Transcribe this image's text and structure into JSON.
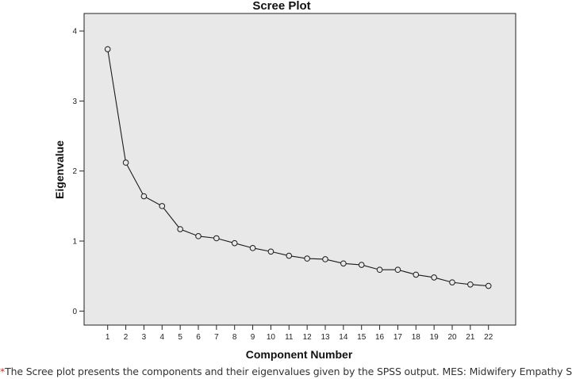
{
  "chart_data": {
    "type": "line",
    "title": "Scree Plot",
    "xlabel": "Component Number",
    "ylabel": "Eigenvalue",
    "x": [
      1,
      2,
      3,
      4,
      5,
      6,
      7,
      8,
      9,
      10,
      11,
      12,
      13,
      14,
      15,
      16,
      17,
      18,
      19,
      20,
      21,
      22
    ],
    "values": [
      3.74,
      2.12,
      1.64,
      1.5,
      1.17,
      1.07,
      1.04,
      0.97,
      0.9,
      0.85,
      0.79,
      0.75,
      0.74,
      0.68,
      0.66,
      0.59,
      0.59,
      0.52,
      0.48,
      0.41,
      0.38,
      0.36
    ],
    "ylim": [
      -0.2,
      4.25
    ],
    "yticks": [
      0,
      1,
      2,
      3,
      4
    ],
    "xlim": [
      -0.3,
      23.5
    ],
    "grid": false,
    "colors": {
      "plot_bg": "#e8e8e8",
      "line": "#1a1a1a"
    }
  },
  "caption": {
    "marker": "*",
    "text": "The Scree plot presents the components and their eigenvalues given by the SPSS output. MES: Midwifery Empathy Scale."
  }
}
